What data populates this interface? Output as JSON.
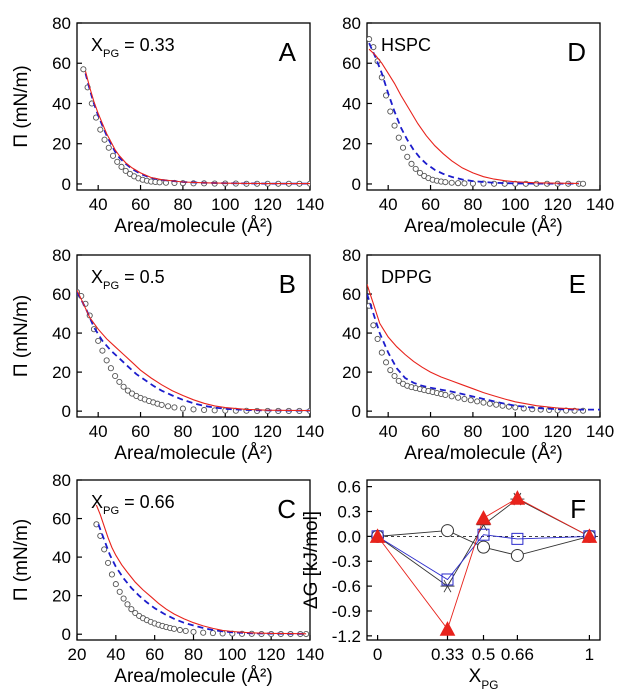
{
  "chart_data": [
    {
      "panel": "A",
      "type": "line",
      "title": "X_PG = 0.33",
      "ylabel": "Π (mN/m)",
      "xlabel": "Area/molecule  (Å²)",
      "xlim": [
        30,
        140
      ],
      "ylim": [
        -3,
        80
      ],
      "xticks": [
        40,
        60,
        80,
        100,
        120,
        140
      ],
      "yticks": [
        0,
        20,
        40,
        60,
        80
      ],
      "series": [
        {
          "style": "open-circles",
          "color": "#555555",
          "x": [
            33,
            35,
            37,
            39,
            41,
            43,
            45,
            47,
            49,
            51,
            53,
            55,
            57,
            59,
            61,
            63,
            65,
            67,
            69,
            72,
            76,
            80,
            85,
            90,
            95,
            100,
            105,
            110,
            115,
            120,
            125,
            130,
            135,
            140
          ],
          "y": [
            57,
            48,
            40,
            33,
            27,
            22,
            18,
            14,
            11,
            8.5,
            6.5,
            5,
            3.8,
            2.8,
            2.1,
            1.6,
            1.2,
            1,
            0.8,
            0.6,
            0.5,
            0.4,
            0.3,
            0.3,
            0.2,
            0.2,
            0.2,
            0.1,
            0.1,
            0.1,
            0.1,
            0.1,
            0.1,
            0.1
          ]
        },
        {
          "style": "dashed",
          "color": "#1c1ccc",
          "x": [
            34,
            36,
            38,
            40,
            42,
            44,
            46,
            48,
            50,
            53,
            56,
            60,
            65,
            70,
            80,
            90,
            100,
            110,
            120,
            130,
            140
          ],
          "y": [
            55,
            47,
            40,
            34,
            29,
            24,
            20,
            16,
            13,
            10,
            7.5,
            5,
            3,
            2,
            1,
            0.6,
            0.4,
            0.3,
            0.2,
            0.2,
            0.2
          ]
        },
        {
          "style": "solid",
          "color": "#e8231c",
          "x": [
            34,
            36,
            38,
            40,
            42,
            44,
            46,
            48,
            50,
            53,
            56,
            60,
            65,
            70,
            80,
            90,
            100,
            110,
            120,
            130,
            140
          ],
          "y": [
            56,
            48,
            41,
            35,
            30,
            25,
            21,
            17,
            14,
            10.5,
            8,
            5.5,
            3.2,
            2.1,
            1,
            0.6,
            0.4,
            0.3,
            0.2,
            0.2,
            0.2
          ]
        }
      ]
    },
    {
      "panel": "B",
      "type": "line",
      "title": "X_PG = 0.5",
      "ylabel": "Π (mN/m)",
      "xlabel": "Area/molecule  (Å²)",
      "xlim": [
        30,
        140
      ],
      "ylim": [
        -3,
        80
      ],
      "xticks": [
        40,
        60,
        80,
        100,
        120,
        140
      ],
      "yticks": [
        0,
        20,
        40,
        60,
        80
      ],
      "series": [
        {
          "style": "open-circles",
          "color": "#555555",
          "x": [
            30,
            32,
            34,
            36,
            38,
            40,
            42,
            44,
            46,
            48,
            50,
            52,
            54,
            56,
            58,
            60,
            62,
            64,
            66,
            68,
            70,
            73,
            76,
            80,
            85,
            90,
            95,
            100,
            105,
            110,
            115,
            120,
            125,
            130,
            135,
            140
          ],
          "y": [
            61,
            59,
            55,
            49,
            42,
            36,
            31,
            26,
            22,
            18,
            15,
            12.5,
            10.5,
            9,
            7.8,
            6.8,
            6,
            5.2,
            4.5,
            3.8,
            3.2,
            2.5,
            1.9,
            1.3,
            0.9,
            0.6,
            0.4,
            0.3,
            0.2,
            0.2,
            0.1,
            0.1,
            0.1,
            0.1,
            0.1,
            0.1
          ]
        },
        {
          "style": "dashed",
          "color": "#1c1ccc",
          "x": [
            30,
            34,
            38,
            42,
            46,
            50,
            54,
            58,
            62,
            66,
            70,
            75,
            80,
            85,
            90,
            95,
            100,
            110,
            120,
            130,
            140
          ],
          "y": [
            61,
            53,
            43,
            36,
            31,
            27,
            23,
            19,
            16,
            13,
            10.5,
            8,
            5.8,
            4,
            2.7,
            1.8,
            1.2,
            0.6,
            0.4,
            0.3,
            0.3
          ]
        },
        {
          "style": "solid",
          "color": "#e8231c",
          "x": [
            30,
            33,
            36,
            40,
            44,
            48,
            52,
            56,
            60,
            65,
            70,
            75,
            80,
            85,
            90,
            95,
            100,
            110,
            120,
            130,
            140
          ],
          "y": [
            62,
            55,
            48,
            42,
            37,
            33,
            29,
            25,
            21,
            17,
            13.5,
            10.5,
            8,
            5.8,
            4,
            2.7,
            1.8,
            0.9,
            0.5,
            0.4,
            0.3
          ]
        }
      ]
    },
    {
      "panel": "C",
      "type": "line",
      "title": "X_PG = 0.66",
      "ylabel": "Π (mN/m)",
      "xlabel": "Area/molecule  (Å²)",
      "xlim": [
        20,
        140
      ],
      "ylim": [
        -3,
        80
      ],
      "xticks": [
        20,
        40,
        60,
        80,
        100,
        120,
        140
      ],
      "yticks": [
        0,
        20,
        40,
        60,
        80
      ],
      "series": [
        {
          "style": "open-circles",
          "color": "#555555",
          "x": [
            30,
            32,
            34,
            36,
            38,
            40,
            42,
            44,
            46,
            48,
            50,
            52,
            54,
            56,
            58,
            60,
            62,
            64,
            66,
            68,
            70,
            73,
            76,
            80,
            85,
            90,
            95,
            100,
            105,
            110,
            115,
            120,
            125,
            130,
            135,
            138
          ],
          "y": [
            57,
            51,
            44,
            37,
            31,
            26,
            22,
            18.5,
            15.5,
            13,
            11,
            9.5,
            8.3,
            7.3,
            6.4,
            5.6,
            4.9,
            4.3,
            3.7,
            3.2,
            2.8,
            2.2,
            1.7,
            1.2,
            0.8,
            0.6,
            0.4,
            0.3,
            0.2,
            0.2,
            0.1,
            0.1,
            0.1,
            0.1,
            0.1,
            0.1
          ]
        },
        {
          "style": "dashed",
          "color": "#1c1ccc",
          "x": [
            31,
            34,
            37,
            40,
            44,
            48,
            52,
            56,
            60,
            65,
            70,
            75,
            80,
            85,
            90,
            95,
            100,
            110,
            120,
            130,
            138
          ],
          "y": [
            57,
            49,
            41,
            35,
            29,
            24,
            20,
            16.5,
            13.5,
            10.5,
            8,
            6,
            4.5,
            3.2,
            2.2,
            1.5,
            1,
            0.5,
            0.3,
            0.2,
            0.2
          ]
        },
        {
          "style": "solid",
          "color": "#e8231c",
          "x": [
            30,
            32,
            34,
            36,
            38,
            40,
            43,
            46,
            50,
            54,
            58,
            62,
            66,
            70,
            75,
            80,
            85,
            90,
            95,
            100,
            110,
            120,
            130,
            138
          ],
          "y": [
            67,
            62,
            56,
            50,
            45,
            41,
            36,
            32,
            27,
            23,
            19.5,
            16,
            13,
            10.5,
            8,
            6,
            4.3,
            3,
            2,
            1.4,
            0.7,
            0.4,
            0.3,
            0.2
          ]
        }
      ]
    },
    {
      "panel": "D",
      "type": "line",
      "title": "HSPC",
      "ylabel": "",
      "xlabel": "Area/molecule  (Å²)",
      "xlim": [
        30,
        140
      ],
      "ylim": [
        -3,
        80
      ],
      "xticks": [
        40,
        60,
        80,
        100,
        120,
        140
      ],
      "yticks": [
        0,
        20,
        40,
        60,
        80
      ],
      "series": [
        {
          "style": "open-circles",
          "color": "#555555",
          "x": [
            31,
            33,
            35,
            37,
            39,
            41,
            43,
            45,
            47,
            49,
            51,
            53,
            55,
            57,
            59,
            61,
            63,
            65,
            67,
            70,
            73,
            76,
            80,
            85,
            90,
            95,
            100,
            105,
            110,
            115,
            120,
            125,
            130,
            132
          ],
          "y": [
            72,
            68,
            61,
            53,
            44,
            36,
            29,
            23,
            18,
            13.5,
            10,
            7.5,
            5.5,
            4,
            2.9,
            2.1,
            1.6,
            1.2,
            0.9,
            0.6,
            0.4,
            0.3,
            0.2,
            0.2,
            0.1,
            0.1,
            0.1,
            0.1,
            0.1,
            0.1,
            0.1,
            0.1,
            0.1,
            0.1
          ]
        },
        {
          "style": "dashed",
          "color": "#1c1ccc",
          "x": [
            31,
            34,
            37,
            40,
            43,
            46,
            49,
            52,
            55,
            58,
            62,
            66,
            70,
            75,
            80,
            90,
            100,
            110,
            120,
            130
          ],
          "y": [
            70,
            63,
            55,
            45,
            36,
            28,
            22,
            17,
            13,
            10,
            7,
            5,
            3.5,
            2.2,
            1.4,
            0.6,
            0.3,
            0.2,
            0.2,
            0.2
          ]
        },
        {
          "style": "solid",
          "color": "#e8231c",
          "x": [
            31,
            34,
            37,
            40,
            43,
            46,
            50,
            54,
            58,
            62,
            66,
            70,
            75,
            80,
            85,
            90,
            95,
            100,
            110,
            120,
            130
          ],
          "y": [
            67,
            64,
            60,
            55,
            50,
            44,
            37,
            30,
            24,
            19,
            15,
            11.5,
            8,
            5.5,
            3.6,
            2.4,
            1.6,
            1.1,
            0.6,
            0.4,
            0.3
          ]
        }
      ]
    },
    {
      "panel": "E",
      "type": "line",
      "title": "DPPG",
      "ylabel": "",
      "xlabel": "Area/molecule  (Å²)",
      "xlim": [
        30,
        140
      ],
      "ylim": [
        -3,
        80
      ],
      "xticks": [
        40,
        60,
        80,
        100,
        120,
        140
      ],
      "yticks": [
        0,
        20,
        40,
        60,
        80
      ],
      "series": [
        {
          "style": "open-circles",
          "color": "#555555",
          "x": [
            31,
            33,
            35,
            37,
            39,
            41,
            43,
            45,
            47,
            49,
            51,
            53,
            55,
            57,
            59,
            61,
            63,
            65,
            67,
            70,
            73,
            76,
            79,
            82,
            85,
            88,
            91,
            94,
            97,
            100,
            104,
            108,
            112,
            116,
            120,
            124,
            128,
            132
          ],
          "y": [
            54,
            44,
            37,
            30,
            25,
            21,
            18,
            15.5,
            14,
            13,
            12.3,
            11.8,
            11.3,
            10.8,
            10.3,
            9.8,
            9.3,
            8.8,
            8.3,
            7.6,
            6.9,
            6.2,
            5.6,
            5,
            4.4,
            3.8,
            3.3,
            2.8,
            2.3,
            1.9,
            1.4,
            1,
            0.8,
            0.6,
            0.4,
            0.3,
            0.2,
            0.2
          ]
        },
        {
          "style": "dashed",
          "color": "#1c1ccc",
          "x": [
            30,
            33,
            36,
            40,
            44,
            48,
            52,
            56,
            60,
            65,
            70,
            75,
            80,
            85,
            90,
            95,
            100,
            110,
            120,
            130,
            140
          ],
          "y": [
            60,
            50,
            40,
            30,
            22,
            17,
            14.5,
            13,
            12,
            11,
            10,
            8.8,
            7.5,
            6.2,
            5,
            3.8,
            2.8,
            1.6,
            1,
            0.8,
            0.8
          ]
        },
        {
          "style": "solid",
          "color": "#e8231c",
          "x": [
            30,
            33,
            36,
            40,
            44,
            48,
            52,
            56,
            60,
            65,
            70,
            75,
            80,
            85,
            90,
            95,
            100,
            110,
            120,
            130
          ],
          "y": [
            65,
            55,
            45,
            38,
            33,
            29,
            25.5,
            22.5,
            20,
            17.5,
            15.5,
            13.5,
            11.5,
            9.5,
            7.8,
            6.2,
            4.8,
            2.8,
            1.6,
            1
          ]
        }
      ]
    },
    {
      "panel": "F",
      "type": "scatter",
      "title": "",
      "ylabel": "ΔG [kJ/mol]",
      "xlabel": "X_PG",
      "categories": [
        "0",
        "0.33",
        "0.5",
        "0.66",
        "1"
      ],
      "x": [
        0,
        0.33,
        0.5,
        0.66,
        1
      ],
      "xlim": [
        -0.05,
        1.05
      ],
      "ylim": [
        -1.25,
        0.68
      ],
      "yticks": [
        -1.2,
        -0.9,
        -0.6,
        -0.3,
        0.0,
        0.3,
        0.6
      ],
      "ytick_labels": [
        "-1.2",
        "-0.9",
        "-0.6",
        "-0.3",
        "0.0",
        "0.3",
        "0.6"
      ],
      "series": [
        {
          "style": "open-circle",
          "color": "#333333",
          "values": [
            0,
            0.07,
            -0.13,
            -0.23,
            0
          ]
        },
        {
          "style": "open-square",
          "color": "#2b2bcc",
          "values": [
            0,
            -0.52,
            0.02,
            -0.03,
            0
          ]
        },
        {
          "style": "filled-triangle",
          "color": "#e8231c",
          "values": [
            0,
            -1.12,
            0.22,
            0.46,
            0
          ]
        },
        {
          "style": "asterisk",
          "color": "#333333",
          "values": [
            0,
            -0.6,
            0.14,
            0.45,
            0
          ]
        }
      ]
    }
  ]
}
